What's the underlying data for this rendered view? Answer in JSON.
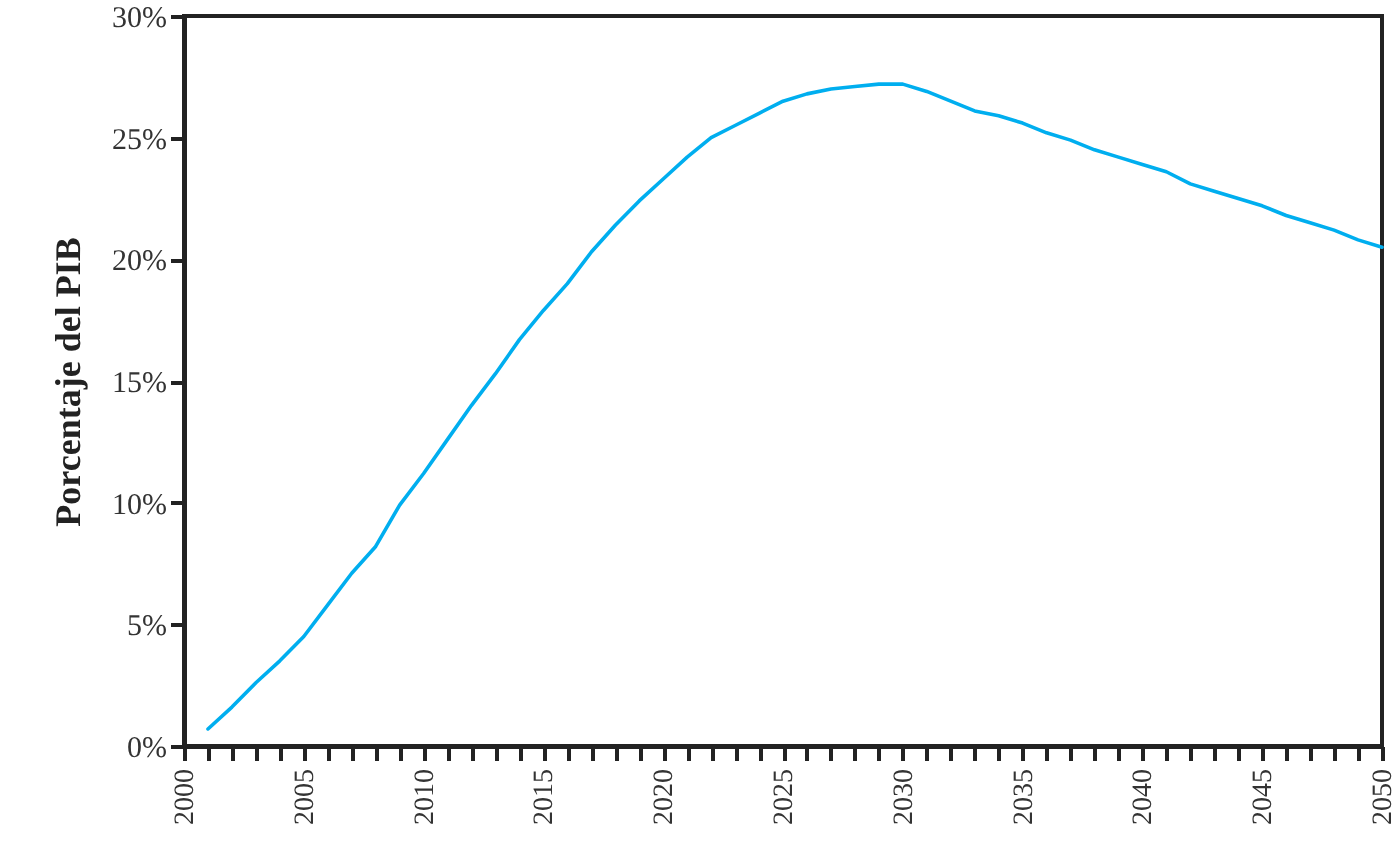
{
  "chart_data": {
    "type": "line",
    "ylabel": "Porcentaje del PIB",
    "x": [
      2001,
      2002,
      2003,
      2004,
      2005,
      2006,
      2007,
      2008,
      2009,
      2010,
      2011,
      2012,
      2013,
      2014,
      2015,
      2016,
      2017,
      2018,
      2019,
      2020,
      2021,
      2022,
      2023,
      2024,
      2025,
      2026,
      2027,
      2028,
      2029,
      2030,
      2031,
      2032,
      2033,
      2034,
      2035,
      2036,
      2037,
      2038,
      2039,
      2040,
      2041,
      2042,
      2043,
      2044,
      2045,
      2046,
      2047,
      2048,
      2049,
      2050
    ],
    "series": [
      {
        "color": "#00aeef",
        "values": [
          0.7,
          1.6,
          2.6,
          3.5,
          4.5,
          5.8,
          7.1,
          8.2,
          9.9,
          11.2,
          12.6,
          14.0,
          15.3,
          16.7,
          17.9,
          19.0,
          20.3,
          21.4,
          22.4,
          23.3,
          24.2,
          25.0,
          25.5,
          26.0,
          26.5,
          26.8,
          27.0,
          27.1,
          27.2,
          27.2,
          26.9,
          26.5,
          26.1,
          25.9,
          25.6,
          25.2,
          24.9,
          24.5,
          24.2,
          23.9,
          23.6,
          23.1,
          22.8,
          22.5,
          22.2,
          21.8,
          21.5,
          21.2,
          20.8,
          20.5
        ]
      }
    ],
    "xlim": [
      2000,
      2050
    ],
    "xticks": [
      2000,
      {
        "value": 2001,
        "label": null
      },
      {
        "value": 2002,
        "label": null
      },
      {
        "value": 2003,
        "label": null
      },
      {
        "value": 2004,
        "label": null
      },
      2005,
      {
        "value": 2006,
        "label": null
      },
      {
        "value": 2007,
        "label": null
      },
      {
        "value": 2008,
        "label": null
      },
      {
        "value": 2009,
        "label": null
      },
      2010,
      {
        "value": 2011,
        "label": null
      },
      {
        "value": 2012,
        "label": null
      },
      {
        "value": 2013,
        "label": null
      },
      {
        "value": 2014,
        "label": null
      },
      2015,
      {
        "value": 2016,
        "label": null
      },
      {
        "value": 2017,
        "label": null
      },
      {
        "value": 2018,
        "label": null
      },
      {
        "value": 2019,
        "label": null
      },
      2020,
      {
        "value": 2021,
        "label": null
      },
      {
        "value": 2022,
        "label": null
      },
      {
        "value": 2023,
        "label": null
      },
      {
        "value": 2024,
        "label": null
      },
      2025,
      {
        "value": 2026,
        "label": null
      },
      {
        "value": 2027,
        "label": null
      },
      {
        "value": 2028,
        "label": null
      },
      {
        "value": 2029,
        "label": null
      },
      2030,
      {
        "value": 2031,
        "label": null
      },
      {
        "value": 2032,
        "label": null
      },
      {
        "value": 2033,
        "label": null
      },
      {
        "value": 2034,
        "label": null
      },
      2035,
      {
        "value": 2036,
        "label": null
      },
      {
        "value": 2037,
        "label": null
      },
      {
        "value": 2038,
        "label": null
      },
      {
        "value": 2039,
        "label": null
      },
      2040,
      {
        "value": 2041,
        "label": null
      },
      {
        "value": 2042,
        "label": null
      },
      {
        "value": 2043,
        "label": null
      },
      {
        "value": 2044,
        "label": null
      },
      2045,
      {
        "value": 2046,
        "label": null
      },
      {
        "value": 2047,
        "label": null
      },
      {
        "value": 2048,
        "label": null
      },
      {
        "value": 2049,
        "label": null
      },
      2050
    ],
    "ylim": [
      0,
      30
    ],
    "yticks": [
      {
        "value": 0,
        "label": "0%"
      },
      {
        "value": 5,
        "label": "5%"
      },
      {
        "value": 10,
        "label": "10%"
      },
      {
        "value": 15,
        "label": "15%"
      },
      {
        "value": 20,
        "label": "20%"
      },
      {
        "value": 25,
        "label": "25%"
      },
      {
        "value": 30,
        "label": "30%"
      }
    ],
    "grid": false,
    "line_style": "solid"
  }
}
